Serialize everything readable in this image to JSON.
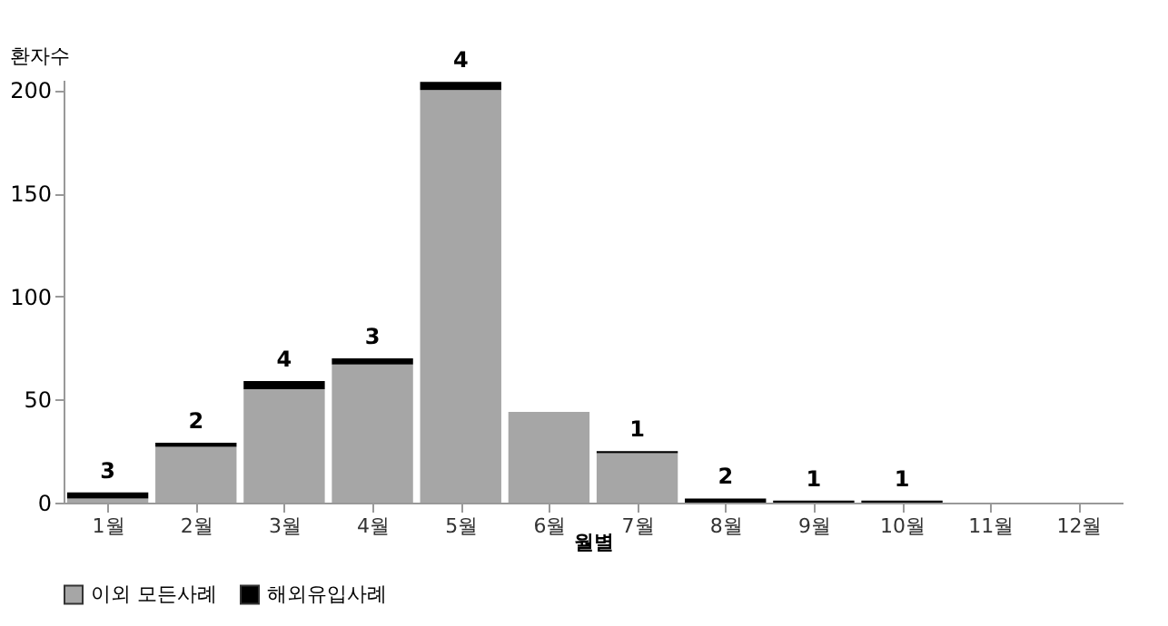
{
  "chart_data": {
    "type": "bar",
    "stacked": true,
    "ylabel": "환자수",
    "xlabel": "월별",
    "categories": [
      "1월",
      "2월",
      "3월",
      "4월",
      "5월",
      "6월",
      "7월",
      "8월",
      "9월",
      "10월",
      "11월",
      "12월"
    ],
    "series": [
      {
        "name": "이외 모든사례",
        "color": "#a6a6a6",
        "values": [
          2,
          27,
          55,
          67,
          200,
          44,
          24,
          null,
          null,
          0,
          0,
          0
        ]
      },
      {
        "name": "해외유입사례",
        "color": "#000000",
        "values": [
          3,
          2,
          4,
          3,
          4,
          0,
          1,
          2,
          1,
          1,
          0,
          0
        ],
        "value_labels": [
          "3",
          "2",
          "4",
          "3",
          "4",
          null,
          "1",
          "2",
          "1",
          "1",
          null,
          null
        ]
      }
    ],
    "ylim": [
      0,
      205
    ],
    "yticks": [
      0,
      50,
      100,
      150,
      200
    ],
    "grid": false,
    "legend": "bottom"
  }
}
